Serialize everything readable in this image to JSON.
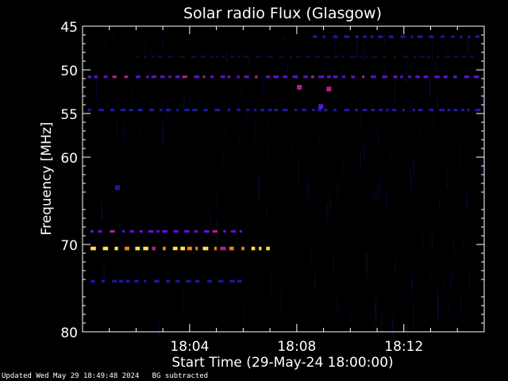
{
  "chart_data": {
    "type": "heatmap",
    "title": "Solar radio Flux (Glasgow)",
    "xlabel": "Start Time (29-May-24 18:00:00)",
    "ylabel": "Frequency [MHz]",
    "x_unit": "minutes after 18:00:00",
    "xlim": [
      0,
      15
    ],
    "ylim": [
      45,
      80
    ],
    "x_ticks": [
      {
        "minute": 4,
        "label": "18:04"
      },
      {
        "minute": 8,
        "label": "18:08"
      },
      {
        "minute": 12,
        "label": "18:12"
      }
    ],
    "y_ticks": [
      {
        "value": 45,
        "label": "45"
      },
      {
        "value": 50,
        "label": "50"
      },
      {
        "value": 55,
        "label": "55"
      },
      {
        "value": 60,
        "label": "60"
      },
      {
        "value": 70,
        "label": "70"
      },
      {
        "value": 80,
        "label": "80"
      }
    ],
    "colors": {
      "background": "#000000",
      "noise": "#0b0b3a",
      "weak": "#1a1aa8",
      "moderate": "#5a14d8",
      "strong": "#b0208c",
      "intense": "#ff7a14",
      "peak": "#ffe04a"
    },
    "bands": [
      {
        "freq": 50.8,
        "x_start": 0.2,
        "x_end": 14.9,
        "level": "moderate"
      },
      {
        "freq": 54.6,
        "x_start": 0.2,
        "x_end": 14.9,
        "level": "weak"
      },
      {
        "freq": 46.2,
        "x_start": 8.6,
        "x_end": 14.9,
        "level": "weak"
      },
      {
        "freq": 48.5,
        "x_start": 2.0,
        "x_end": 14.5,
        "level": "noise"
      },
      {
        "freq": 68.5,
        "x_start": 0.3,
        "x_end": 5.9,
        "level": "moderate"
      },
      {
        "freq": 70.4,
        "x_start": 0.3,
        "x_end": 6.9,
        "level": "intense"
      },
      {
        "freq": 74.2,
        "x_start": 0.3,
        "x_end": 5.9,
        "level": "weak"
      }
    ],
    "bursts": [
      {
        "minute": 8.1,
        "freq": 52.0,
        "level": "strong"
      },
      {
        "minute": 9.2,
        "freq": 52.2,
        "level": "strong"
      },
      {
        "minute": 8.9,
        "freq": 54.2,
        "level": "moderate"
      },
      {
        "minute": 1.3,
        "freq": 63.5,
        "level": "weak"
      }
    ]
  },
  "footer": {
    "updated": "Updated Wed May 29 18:49:48 2024",
    "note": "BG subtracted"
  }
}
